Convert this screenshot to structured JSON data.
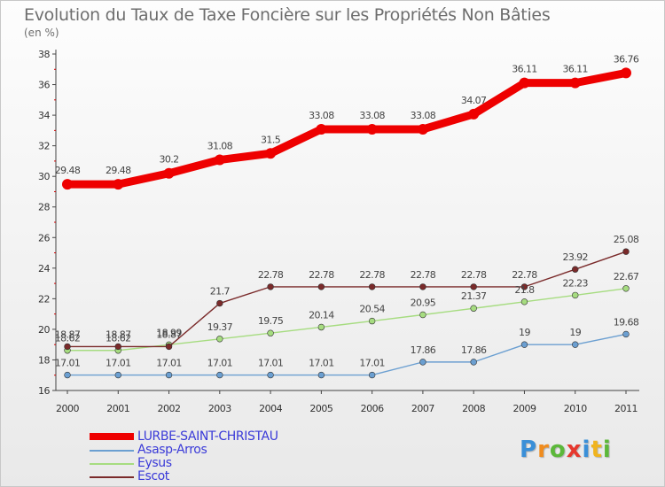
{
  "title": "Evolution du Taux de Taxe Foncière sur les Propriétés Non Bâties",
  "subtitle": "(en %)",
  "logo": {
    "letters": [
      "P",
      "r",
      "o",
      "x",
      "i",
      "t",
      "i"
    ],
    "colors": [
      "#3a8fd8",
      "#f08c1e",
      "#5cb83a",
      "#e6382e",
      "#3a8fd8",
      "#f0b41e",
      "#5cb83a"
    ]
  },
  "chart_data": {
    "type": "line",
    "title": "Evolution du Taux de Taxe Foncière sur les Propriétés Non Bâties",
    "ylabel": "(en %)",
    "x": [
      "2000",
      "2001",
      "2002",
      "2003",
      "2004",
      "2005",
      "2006",
      "2007",
      "2008",
      "2009",
      "2010",
      "2011"
    ],
    "ylim": [
      16,
      38
    ],
    "yticks": [
      16,
      18,
      20,
      22,
      24,
      26,
      28,
      30,
      32,
      34,
      36,
      38
    ],
    "grid": false,
    "legend_position": "bottom-left",
    "series": [
      {
        "name": "LURBE-SAINT-CHRISTAU",
        "color": "#ee0000",
        "labels": [
          "29.48",
          "29.48",
          "30.2",
          "31.08",
          "31.5",
          "33.08",
          "33.08",
          "33.08",
          "34.07",
          "36.11",
          "36.11",
          "36.76"
        ],
        "values": [
          29.48,
          29.48,
          30.2,
          31.08,
          31.5,
          33.08,
          33.08,
          33.08,
          34.07,
          36.11,
          36.11,
          36.76
        ]
      },
      {
        "name": "Asasp-Arros",
        "color": "#6b9fd1",
        "labels": [
          "17.01",
          "17.01",
          "17.01",
          "17.01",
          "17.01",
          "17.01",
          "17.01",
          "17.86",
          "17.86",
          "19",
          "19",
          "19.68"
        ],
        "values": [
          17.01,
          17.01,
          17.01,
          17.01,
          17.01,
          17.01,
          17.01,
          17.86,
          17.86,
          19,
          19,
          19.68
        ]
      },
      {
        "name": "Eysus",
        "color": "#a6dc80",
        "labels": [
          "18.62",
          "18.62",
          "18.99",
          "19.37",
          "19.75",
          "20.14",
          "20.54",
          "20.95",
          "21.37",
          "21.8",
          "22.23",
          "22.67"
        ],
        "values": [
          18.62,
          18.62,
          18.99,
          19.37,
          19.75,
          20.14,
          20.54,
          20.95,
          21.37,
          21.8,
          22.23,
          22.67
        ]
      },
      {
        "name": "Escot",
        "color": "#7a2a2a",
        "labels": [
          "18.87",
          "18.87",
          "18.87",
          "21.7",
          "22.78",
          "22.78",
          "22.78",
          "22.78",
          "22.78",
          "22.78",
          "23.92",
          "25.08"
        ],
        "values": [
          18.87,
          18.87,
          18.87,
          21.7,
          22.78,
          22.78,
          22.78,
          22.78,
          22.78,
          22.78,
          23.92,
          25.08
        ]
      }
    ]
  }
}
